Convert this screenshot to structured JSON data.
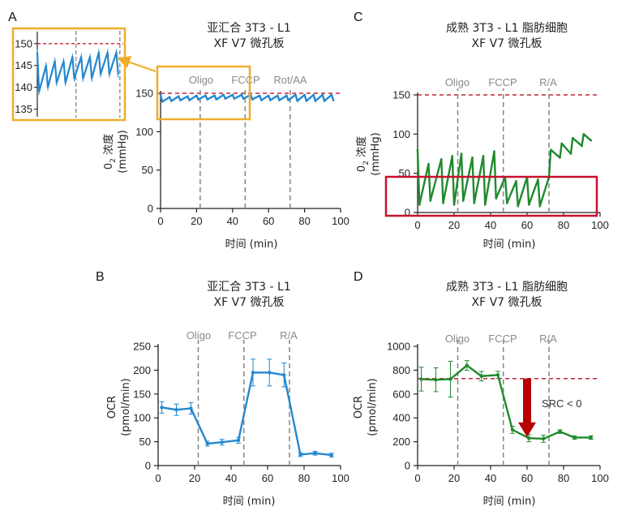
{
  "panels": {
    "A": {
      "label": "A",
      "title1": "亚汇合 3T3 - L1",
      "title2": "XF V7 微孔板",
      "xlabel": "时间 (min)",
      "ylabel1": "0",
      "ylabel_sub": "2",
      "ylabel2": "浓度",
      "ylabel3": "(mmHg)",
      "color": "#2388d0",
      "xlim": [
        0,
        100
      ],
      "ylim": [
        0,
        150
      ],
      "xticks": [
        "0",
        "20",
        "40",
        "60",
        "80",
        "100"
      ],
      "yticks": [
        "0",
        "50",
        "100",
        "150"
      ],
      "ref_line": 150,
      "injections": [
        {
          "label": "Oligo",
          "x": 22
        },
        {
          "label": "FCCP",
          "x": 47
        },
        {
          "label": "Rot/AA",
          "x": 72
        }
      ],
      "inset": {
        "yticks": [
          "135",
          "140",
          "145",
          "150"
        ],
        "ylim": [
          134,
          152
        ],
        "xlim": [
          0,
          48
        ],
        "ref_line": 150,
        "injections": [
          22,
          47
        ]
      }
    },
    "B": {
      "label": "B",
      "title1": "亚汇合 3T3 - L1",
      "title2": "XF V7 微孔板",
      "xlabel": "时间 (min)",
      "ylabel1": "OCR",
      "ylabel2": "(pmol/min)",
      "color": "#2388d0",
      "xticks": [
        "0",
        "20",
        "40",
        "60",
        "80",
        "100"
      ],
      "yticks": [
        "0",
        "50",
        "100",
        "150",
        "200",
        "250"
      ],
      "injections": [
        {
          "label": "Oligo",
          "x": 22
        },
        {
          "label": "FCCP",
          "x": 47
        },
        {
          "label": "R/A",
          "x": 72
        }
      ]
    },
    "C": {
      "label": "C",
      "title1": "成熟 3T3 - L1 脂肪细胞",
      "title2": "XF V7 微孔板",
      "xlabel": "时间 (min)",
      "ylabel1": "0",
      "ylabel_sub": "2",
      "ylabel2": "浓度",
      "ylabel3": "(mmHg)",
      "color": "#1f8a2e",
      "xticks": [
        "0",
        "20",
        "40",
        "60",
        "80",
        "100"
      ],
      "yticks": [
        "0",
        "50",
        "100",
        "150"
      ],
      "ref_line": 150,
      "injections": [
        {
          "label": "Oligo",
          "x": 22
        },
        {
          "label": "FCCP",
          "x": 47
        },
        {
          "label": "R/A",
          "x": 72
        }
      ]
    },
    "D": {
      "label": "D",
      "title1": "成熟 3T3 - L1 脂肪细胞",
      "title2": "XF V7 微孔板",
      "xlabel": "时间 (min)",
      "ylabel1": "OCR",
      "ylabel2": "(pmol/min)",
      "color": "#1f8a2e",
      "xticks": [
        "0",
        "20",
        "40",
        "60",
        "80",
        "100"
      ],
      "yticks": [
        "0",
        "200",
        "400",
        "600",
        "800",
        "1000"
      ],
      "ref_line": 730,
      "annotation": "SRC < 0",
      "injections": [
        {
          "label": "Oligo",
          "x": 22
        },
        {
          "label": "FCCP",
          "x": 47
        },
        {
          "label": "R/A",
          "x": 72
        }
      ]
    }
  },
  "colors": {
    "ref_line": "#c0263a",
    "injection_line": "#8a8a8a",
    "inset_box": "#f0ad2a",
    "highlight_box": "#c8102e",
    "arrow": "#b80000"
  },
  "chart_data": [
    {
      "type": "line",
      "panel": "A",
      "title": "亚汇合 3T3 - L1 XF V7 微孔板",
      "xlabel": "时间 (min)",
      "ylabel": "02 浓度 (mmHg)",
      "xlim": [
        0,
        100
      ],
      "ylim": [
        0,
        150
      ],
      "reference_line_y": 150,
      "series": [
        {
          "x": [
            0,
            1,
            5,
            6,
            10,
            11,
            15,
            16,
            20,
            21,
            25,
            26,
            30,
            31,
            35,
            36,
            40,
            41,
            45,
            46,
            50,
            51,
            55,
            56,
            60,
            61,
            65,
            66,
            70,
            71,
            75,
            76,
            80,
            81,
            85,
            86,
            90,
            91,
            95,
            96
          ],
          "y": [
            148,
            139,
            145,
            140,
            146,
            141,
            146,
            141,
            147,
            142,
            147,
            142,
            147,
            142,
            148,
            143,
            148,
            143,
            148,
            143,
            148,
            142,
            147,
            141,
            147,
            141,
            147,
            141,
            147,
            141,
            148,
            140,
            148,
            140,
            148,
            140,
            148,
            140,
            148,
            141
          ]
        }
      ]
    },
    {
      "type": "line",
      "panel": "B",
      "title": "亚汇合 3T3 - L1 XF V7 微孔板",
      "xlabel": "时间 (min)",
      "ylabel": "OCR (pmol/min)",
      "xlim": [
        0,
        100
      ],
      "ylim": [
        0,
        250
      ],
      "series": [
        {
          "x": [
            2,
            10,
            18,
            27,
            35,
            44,
            52,
            61,
            69,
            78,
            86,
            95
          ],
          "y": [
            122,
            117,
            120,
            46,
            49,
            53,
            195,
            195,
            190,
            23,
            26,
            22
          ],
          "error": [
            12,
            12,
            12,
            5,
            6,
            6,
            28,
            28,
            25,
            4,
            4,
            4
          ]
        }
      ]
    },
    {
      "type": "line",
      "panel": "C",
      "title": "成熟 3T3 - L1 脂肪细胞 XF V7 微孔板",
      "xlabel": "时间 (min)",
      "ylabel": "02 浓度 (mmHg)",
      "xlim": [
        0,
        100
      ],
      "ylim": [
        0,
        150
      ],
      "reference_line_y": 150,
      "series": [
        {
          "x": [
            0,
            1,
            6,
            7,
            13,
            14,
            19,
            20,
            24,
            25,
            30,
            31,
            36,
            37,
            42,
            43,
            48,
            49,
            54,
            55,
            60,
            61,
            66,
            67,
            72,
            73,
            78,
            79,
            84,
            85,
            90,
            91,
            95
          ],
          "y": [
            80,
            10,
            62,
            15,
            68,
            12,
            72,
            10,
            75,
            15,
            70,
            12,
            72,
            10,
            78,
            18,
            45,
            12,
            40,
            8,
            45,
            10,
            42,
            8,
            45,
            80,
            70,
            88,
            75,
            95,
            85,
            100,
            92
          ]
        }
      ]
    },
    {
      "type": "line",
      "panel": "D",
      "title": "成熟 3T3 - L1 脂肪细胞 XF V7 微孔板",
      "xlabel": "时间 (min)",
      "ylabel": "OCR (pmol/min)",
      "xlim": [
        0,
        100
      ],
      "ylim": [
        0,
        1000
      ],
      "reference_line_y": 730,
      "annotation": "SRC < 0",
      "series": [
        {
          "x": [
            2,
            10,
            18,
            27,
            35,
            44,
            52,
            61,
            69,
            78,
            86,
            95
          ],
          "y": [
            725,
            720,
            725,
            840,
            750,
            760,
            300,
            230,
            225,
            285,
            235,
            235
          ],
          "error": [
            100,
            100,
            150,
            40,
            40,
            30,
            30,
            30,
            30,
            15,
            15,
            15
          ]
        }
      ]
    }
  ]
}
